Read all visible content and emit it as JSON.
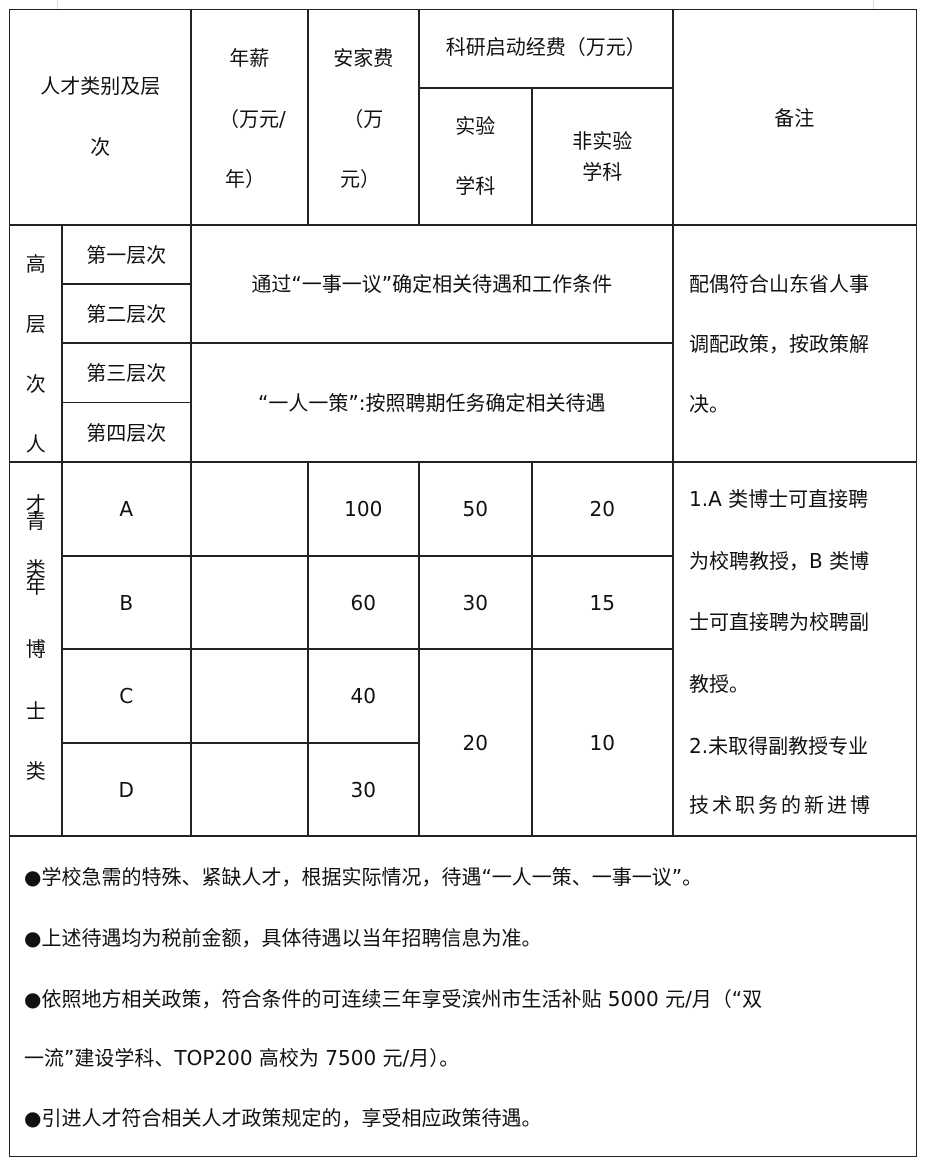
{
  "header": {
    "category": [
      "人才类别及层",
      "次"
    ],
    "salary": [
      "年薪",
      "（万元/",
      "年）"
    ],
    "settlement": [
      "安家费",
      " （万",
      "元）"
    ],
    "research_fund": "科研启动经费（万元）",
    "lab": [
      "实验",
      "学科"
    ],
    "non_lab": [
      "非实验",
      "学科"
    ],
    "remarks": "备注"
  },
  "high_level": {
    "group_label": [
      "高",
      "层",
      "次",
      "人"
    ],
    "levels": [
      "第一层次",
      "第二层次",
      "第三层次",
      "第四层次"
    ],
    "policy_1_2": "通过“一事一议”确定相关待遇和工作条件",
    "policy_3_4": "“一人一策”:按照聘期任务确定相关待遇",
    "remarks": [
      "配偶符合山东省人事",
      "调配政策，按政策解",
      "决。"
    ]
  },
  "youth_phd": {
    "group_label": [
      "才",
      "青",
      "类",
      "年",
      "博",
      "士",
      "类"
    ],
    "rows": [
      {
        "grade": "A",
        "salary": "",
        "settlement": "100"
      },
      {
        "grade": "B",
        "salary": "",
        "settlement": "60"
      },
      {
        "grade": "C",
        "salary": "",
        "settlement": "40"
      },
      {
        "grade": "D",
        "salary": "",
        "settlement": "30"
      }
    ],
    "lab_fund": [
      "50",
      "30",
      "20"
    ],
    "non_lab_fund": [
      "20",
      "15",
      "10"
    ],
    "remarks": [
      "1.A 类博士可直接聘",
      "为校聘教授，B 类博",
      "士可直接聘为校聘副",
      "教授。",
      "2.未取得副教授专业",
      "技术职务的新进博"
    ]
  },
  "notes": [
    "●学校急需的特殊、紧缺人才，根据实际情况，待遇“一人一策、一事一议”。",
    "●上述待遇均为税前金额，具体待遇以当年招聘信息为准。",
    "●依照地方相关政策，符合条件的可连续三年享受滨州市生活补贴 5000 元/月（“双",
    "一流”建设学科、TOP200 高校为 7500 元/月）。",
    "●引进人才符合相关人才政策规定的，享受相应政策待遇。"
  ]
}
